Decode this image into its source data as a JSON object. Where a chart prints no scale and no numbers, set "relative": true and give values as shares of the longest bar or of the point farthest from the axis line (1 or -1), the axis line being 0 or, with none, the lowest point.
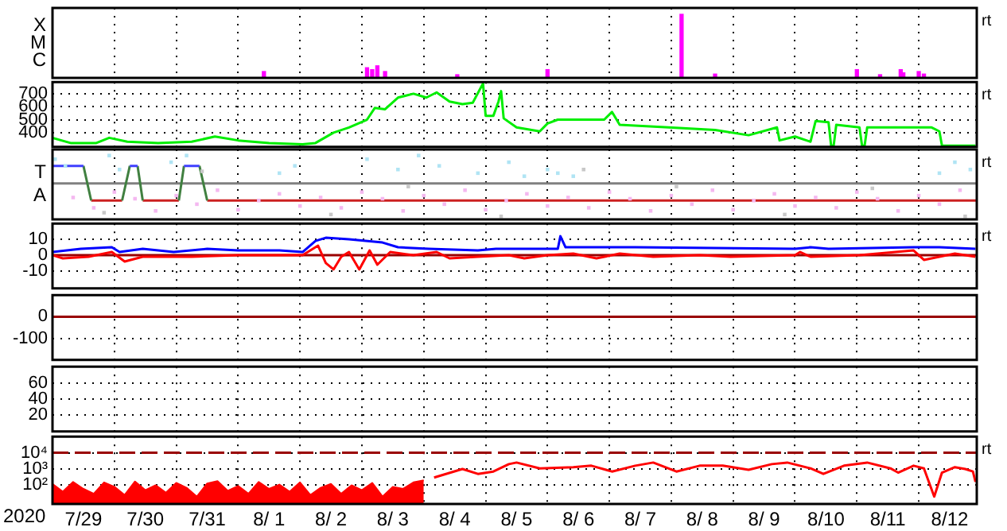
{
  "chart_data": [
    {
      "type": "bar",
      "relative": true,
      "grid": "x",
      "tick_labels": false,
      "title": "rt",
      "annotations": [
        "X",
        "M",
        "C"
      ],
      "xlim": [
        "2020-07-29",
        "2020-08-12T22:30"
      ],
      "xticks": [
        {
          "value": "2020-07-30",
          "label": null
        },
        {
          "value": "2020-07-31",
          "label": null
        },
        {
          "value": "2020-08-01",
          "label": null
        },
        {
          "value": "2020-08-02",
          "label": null
        },
        {
          "value": "2020-08-03",
          "label": null
        },
        {
          "value": "2020-08-04",
          "label": null
        },
        {
          "value": "2020-08-05",
          "label": null
        },
        {
          "value": "2020-08-06",
          "label": null
        },
        {
          "value": "2020-08-07",
          "label": null
        },
        {
          "value": "2020-08-08",
          "label": null
        },
        {
          "value": "2020-08-09",
          "label": null
        },
        {
          "value": "2020-08-10",
          "label": null
        },
        {
          "value": "2020-08-11",
          "label": null
        },
        {
          "value": "2020-08-12",
          "label": null
        }
      ],
      "series": [
        {
          "color": "#ff00ff",
          "x": [
            "2020-08-01T10:00",
            "2020-08-03T02:00",
            "2020-08-03T04:00",
            "2020-08-03T06:00",
            "2020-08-03T09:00",
            "2020-08-04T13:00",
            "2020-08-06T00:00",
            "2020-08-08T04:00",
            "2020-08-08T17:00",
            "2020-08-11T00:00",
            "2020-08-11T09:00",
            "2020-08-11T17:00",
            "2020-08-11T18:00",
            "2020-08-12T00:00",
            "2020-08-12T02:00"
          ],
          "values": [
            0.1,
            0.16,
            0.13,
            0.19,
            0.1,
            0.05,
            0.13,
            1,
            0.06,
            0.13,
            0.05,
            0.13,
            0.08,
            0.1,
            0.06
          ]
        }
      ]
    },
    {
      "type": "line",
      "grid": true,
      "tick_labels": "y",
      "title": "rt",
      "xlim": [
        "2020-07-29",
        "2020-08-12T22:30"
      ],
      "xticks": [
        {
          "value": "2020-07-30",
          "label": null
        },
        {
          "value": "2020-07-31",
          "label": null
        },
        {
          "value": "2020-08-01",
          "label": null
        },
        {
          "value": "2020-08-02",
          "label": null
        },
        {
          "value": "2020-08-03",
          "label": null
        },
        {
          "value": "2020-08-04",
          "label": null
        },
        {
          "value": "2020-08-05",
          "label": null
        },
        {
          "value": "2020-08-06",
          "label": null
        },
        {
          "value": "2020-08-07",
          "label": null
        },
        {
          "value": "2020-08-08",
          "label": null
        },
        {
          "value": "2020-08-09",
          "label": null
        },
        {
          "value": "2020-08-10",
          "label": null
        },
        {
          "value": "2020-08-11",
          "label": null
        },
        {
          "value": "2020-08-12",
          "label": null
        }
      ],
      "ylim": [
        290,
        790
      ],
      "yticks": [
        400,
        500,
        600,
        700
      ],
      "series": [
        {
          "color": "#00ee00",
          "x": [
            "2020-07-29T00:00",
            "2020-07-29T07:00",
            "2020-07-29T17:00",
            "2020-07-29T22:00",
            "2020-07-30T05:00",
            "2020-07-30T17:00",
            "2020-07-31T06:00",
            "2020-07-31T15:00",
            "2020-08-01T00:00",
            "2020-08-01T12:00",
            "2020-08-02T01:00",
            "2020-08-02T06:00",
            "2020-08-02T13:00",
            "2020-08-02T19:00",
            "2020-08-03T02:00",
            "2020-08-03T05:00",
            "2020-08-03T09:00",
            "2020-08-03T14:00",
            "2020-08-03T20:00",
            "2020-08-04T01:00",
            "2020-08-04T05:00",
            "2020-08-04T10:00",
            "2020-08-04T15:00",
            "2020-08-04T19:00",
            "2020-08-04T23:00",
            "2020-08-05T00:00",
            "2020-08-05T03:00",
            "2020-08-05T05:00",
            "2020-08-05T06:00",
            "2020-08-05T07:00",
            "2020-08-05T12:00",
            "2020-08-05T21:00",
            "2020-08-06T00:00",
            "2020-08-06T04:00",
            "2020-08-06T22:00",
            "2020-08-07T01:00",
            "2020-08-07T04:00",
            "2020-08-07T23:00",
            "2020-08-08T17:00",
            "2020-08-09T06:00",
            "2020-08-09T17:00",
            "2020-08-09T18:00",
            "2020-08-10T00:00",
            "2020-08-10T06:00",
            "2020-08-10T08:00",
            "2020-08-10T13:00",
            "2020-08-10T14:00",
            "2020-08-10T15:00",
            "2020-08-10T16:00",
            "2020-08-11T01:00",
            "2020-08-11T02:00",
            "2020-08-11T03:00",
            "2020-08-11T04:00",
            "2020-08-12T05:00",
            "2020-08-12T08:00",
            "2020-08-12T09:00",
            "2020-08-12T22:00"
          ],
          "values": [
            360,
            320,
            320,
            360,
            330,
            320,
            330,
            370,
            340,
            320,
            310,
            320,
            400,
            440,
            500,
            590,
            580,
            670,
            700,
            670,
            710,
            640,
            620,
            630,
            780,
            530,
            530,
            640,
            720,
            510,
            440,
            410,
            470,
            500,
            500,
            560,
            460,
            440,
            420,
            380,
            440,
            340,
            370,
            330,
            490,
            480,
            300,
            300,
            460,
            440,
            300,
            300,
            440,
            440,
            410,
            300,
            300
          ]
        }
      ]
    },
    {
      "type": "line",
      "relative": true,
      "grid": "x",
      "tick_labels": false,
      "title": "rt",
      "annotations": [
        "T",
        "A"
      ],
      "xlim": [
        "2020-07-29",
        "2020-08-12T22:30"
      ],
      "xticks": [
        {
          "value": "2020-07-30",
          "label": null
        },
        {
          "value": "2020-07-31",
          "label": null
        },
        {
          "value": "2020-08-01",
          "label": null
        },
        {
          "value": "2020-08-02",
          "label": null
        },
        {
          "value": "2020-08-03",
          "label": null
        },
        {
          "value": "2020-08-04",
          "label": null
        },
        {
          "value": "2020-08-05",
          "label": null
        },
        {
          "value": "2020-08-06",
          "label": null
        },
        {
          "value": "2020-08-07",
          "label": null
        },
        {
          "value": "2020-08-08",
          "label": null
        },
        {
          "value": "2020-08-09",
          "label": null
        },
        {
          "value": "2020-08-10",
          "label": null
        },
        {
          "value": "2020-08-11",
          "label": null
        },
        {
          "value": "2020-08-12",
          "label": null
        }
      ],
      "ref_lines": [
        {
          "axis": "y",
          "value": 0.54,
          "color": "#808080"
        }
      ],
      "series": [
        {
          "type": "scatter",
          "marker": "square",
          "color": "#f4b8f0",
          "x": [
            "2020-07-29T08:00",
            "2020-07-29T16:00",
            "2020-07-30T00:00",
            "2020-07-30T08:00",
            "2020-07-30T16:00",
            "2020-07-31T00:00",
            "2020-07-31T08:00",
            "2020-07-31T16:00",
            "2020-08-01T00:00",
            "2020-08-01T08:00",
            "2020-08-01T16:00",
            "2020-08-02T00:00",
            "2020-08-02T08:00",
            "2020-08-02T16:00",
            "2020-08-03T00:00",
            "2020-08-03T08:00",
            "2020-08-03T16:00",
            "2020-08-04T00:00",
            "2020-08-04T08:00",
            "2020-08-04T16:00",
            "2020-08-05T00:00",
            "2020-08-05T08:00",
            "2020-08-05T16:00",
            "2020-08-06T00:00",
            "2020-08-06T08:00",
            "2020-08-06T16:00",
            "2020-08-07T00:00",
            "2020-08-07T08:00",
            "2020-08-07T16:00",
            "2020-08-08T00:00",
            "2020-08-08T08:00",
            "2020-08-08T16:00",
            "2020-08-09T00:00",
            "2020-08-09T08:00",
            "2020-08-09T16:00",
            "2020-08-10T00:00",
            "2020-08-10T08:00",
            "2020-08-10T16:00",
            "2020-08-11T00:00",
            "2020-08-11T08:00",
            "2020-08-11T16:00",
            "2020-08-12T00:00",
            "2020-08-12T08:00",
            "2020-08-12T16:00"
          ],
          "values": [
            0.31,
            0.14,
            0.4,
            0.29,
            0.09,
            0.34,
            0.2,
            0.43,
            0.11,
            0.26,
            0.37,
            0.17,
            0.31,
            0.14,
            0.4,
            0.29,
            0.09,
            0.34,
            0.2,
            0.43,
            0.11,
            0.26,
            0.37,
            0.17,
            0.31,
            0.14,
            0.4,
            0.29,
            0.09,
            0.34,
            0.2,
            0.43,
            0.11,
            0.26,
            0.37,
            0.17,
            0.31,
            0.14,
            0.4,
            0.29,
            0.09,
            0.34,
            0.2,
            0.43
          ]
        },
        {
          "type": "scatter",
          "marker": "square",
          "color": "#b0e4f4",
          "x": [
            "2020-07-29T01:00",
            "2020-07-29T05:00",
            "2020-07-29T22:00",
            "2020-07-30T02:00",
            "2020-07-30T22:00",
            "2020-07-31T04:00",
            "2020-08-01T16:00",
            "2020-08-01T22:00",
            "2020-08-03T02:00",
            "2020-08-03T14:00",
            "2020-08-03T22:00",
            "2020-08-04T06:00",
            "2020-08-04T21:00",
            "2020-08-05T09:00",
            "2020-08-05T15:00",
            "2020-08-06T00:00",
            "2020-08-06T04:00",
            "2020-08-06T10:00",
            "2020-08-12T08:00",
            "2020-08-12T14:00",
            "2020-08-12T20:00"
          ],
          "values": [
            0.94,
            0.83,
            1,
            0.77,
            0.89,
            1,
            0.71,
            0.83,
            0.94,
            0.77,
            1,
            0.83,
            0.71,
            0.89,
            0.66,
            0.77,
            0.71,
            0.66,
            0.71,
            0.89,
            0.77
          ]
        },
        {
          "type": "scatter",
          "marker": "square",
          "color": "#c8c8c8",
          "x": [
            "2020-07-29T20:00",
            "2020-07-31T10:00",
            "2020-08-02T12:00",
            "2020-08-03T18:00",
            "2020-08-05T06:00",
            "2020-08-06T14:00",
            "2020-08-08T02:00",
            "2020-08-09T20:00",
            "2020-08-11T06:00",
            "2020-08-12T18:00"
          ],
          "values": [
            0.06,
            0.74,
            0.03,
            0.49,
            0,
            0.77,
            0.49,
            0.03,
            0.46,
            0
          ]
        },
        {
          "color": "#4040ff",
          "x": [
            "2020-07-29T00:00",
            "2020-07-29T12:00",
            "2020-07-29T17:00",
            "2020-07-30T06:00",
            "2020-07-30T09:00",
            "2020-07-30T17:00",
            "2020-07-31T03:00",
            "2020-07-31T09:00"
          ],
          "values": [
            0.83,
            0.83,
            null,
            0.83,
            0.83,
            null,
            0.83,
            0.83
          ]
        },
        {
          "color": "#408040",
          "x": [
            "2020-07-29T12:00",
            "2020-07-29T15:00",
            "2020-07-29T20:00",
            "2020-07-30T03:00",
            "2020-07-30T06:00",
            "2020-07-30T07:00",
            "2020-07-30T09:00",
            "2020-07-30T11:00",
            "2020-07-30T17:00",
            "2020-07-31T01:00",
            "2020-07-31T03:00",
            "2020-07-31T06:00",
            "2020-07-31T09:00",
            "2020-07-31T12:00"
          ],
          "values": [
            0.83,
            0.26,
            null,
            0.26,
            0.83,
            null,
            0.83,
            0.26,
            null,
            0.26,
            0.83,
            null,
            0.83,
            0.26
          ]
        },
        {
          "color": "#cc2020",
          "x": [
            "2020-07-29T15:00",
            "2020-07-30T03:00",
            "2020-07-30T04:00",
            "2020-07-30T11:00",
            "2020-07-31T01:00",
            "2020-07-31T02:00",
            "2020-07-31T12:00",
            "2020-08-12T22:30"
          ],
          "values": [
            0.26,
            0.26,
            null,
            0.26,
            0.26,
            null,
            0.26,
            0.26
          ]
        }
      ]
    },
    {
      "type": "line",
      "grid": true,
      "tick_labels": "y",
      "title": "rt",
      "xlim": [
        "2020-07-29",
        "2020-08-12T22:30"
      ],
      "xticks": [
        {
          "value": "2020-07-30",
          "label": null
        },
        {
          "value": "2020-07-31",
          "label": null
        },
        {
          "value": "2020-08-01",
          "label": null
        },
        {
          "value": "2020-08-02",
          "label": null
        },
        {
          "value": "2020-08-03",
          "label": null
        },
        {
          "value": "2020-08-04",
          "label": null
        },
        {
          "value": "2020-08-05",
          "label": null
        },
        {
          "value": "2020-08-06",
          "label": null
        },
        {
          "value": "2020-08-07",
          "label": null
        },
        {
          "value": "2020-08-08",
          "label": null
        },
        {
          "value": "2020-08-09",
          "label": null
        },
        {
          "value": "2020-08-10",
          "label": null
        },
        {
          "value": "2020-08-11",
          "label": null
        },
        {
          "value": "2020-08-12",
          "label": null
        }
      ],
      "ylim": [
        -21,
        20
      ],
      "yticks": [
        -10,
        0,
        10
      ],
      "ref_lines": [
        {
          "axis": "y",
          "value": 0,
          "color": "#990000"
        }
      ],
      "series": [
        {
          "color": "#0000ff",
          "x": [
            "2020-07-29T00:00",
            "2020-07-29T11:00",
            "2020-07-29T23:00",
            "2020-07-30T02:00",
            "2020-07-30T11:00",
            "2020-07-30T23:00",
            "2020-07-31T12:00",
            "2020-08-01T00:00",
            "2020-08-01T16:00",
            "2020-08-02T01:00",
            "2020-08-02T06:00",
            "2020-08-02T10:00",
            "2020-08-02T19:00",
            "2020-08-03T08:00",
            "2020-08-03T14:00",
            "2020-08-04T02:00",
            "2020-08-04T21:00",
            "2020-08-05T04:00",
            "2020-08-06T04:00",
            "2020-08-06T05:00",
            "2020-08-06T07:00",
            "2020-08-07T10:00",
            "2020-08-10T00:00",
            "2020-08-10T06:00",
            "2020-08-10T13:00",
            "2020-08-11T22:00",
            "2020-08-12T08:00",
            "2020-08-12T22:00"
          ],
          "values": [
            2,
            4,
            5,
            2,
            4,
            2,
            4,
            3,
            3,
            2,
            9,
            11,
            10,
            8,
            5,
            4,
            3,
            4,
            4,
            12,
            5,
            5,
            4,
            5,
            4,
            5,
            5,
            4
          ]
        },
        {
          "color": "#ff0000",
          "x": [
            "2020-07-29T00:00",
            "2020-07-29T04:00",
            "2020-07-29T14:00",
            "2020-07-29T23:00",
            "2020-07-30T04:00",
            "2020-07-30T11:00",
            "2020-07-31T06:00",
            "2020-08-01T00:00",
            "2020-08-02T01:00",
            "2020-08-02T07:00",
            "2020-08-02T10:00",
            "2020-08-02T13:00",
            "2020-08-02T16:00",
            "2020-08-02T19:00",
            "2020-08-02T23:00",
            "2020-08-03T03:00",
            "2020-08-03T06:00",
            "2020-08-03T11:00",
            "2020-08-03T20:00",
            "2020-08-04T05:00",
            "2020-08-04T10:00",
            "2020-08-04T21:00",
            "2020-08-05T09:00",
            "2020-08-05T15:00",
            "2020-08-06T00:00",
            "2020-08-06T10:00",
            "2020-08-06T19:00",
            "2020-08-07T04:00",
            "2020-08-07T17:00",
            "2020-08-08T11:00",
            "2020-08-08T23:00",
            "2020-08-10T00:00",
            "2020-08-10T02:00",
            "2020-08-10T06:00",
            "2020-08-11T01:00",
            "2020-08-11T22:00",
            "2020-08-12T02:00",
            "2020-08-12T08:00",
            "2020-08-12T14:00",
            "2020-08-12T22:00"
          ],
          "values": [
            0,
            -2,
            -1,
            2,
            -4,
            -1,
            -1,
            0,
            0,
            6,
            -5,
            -9,
            -1,
            2,
            -9,
            3,
            -6,
            2,
            0,
            2,
            -2,
            -1,
            0,
            -2,
            0,
            1,
            -2,
            1,
            -1,
            0,
            -1,
            0,
            2,
            -1,
            0,
            3,
            -3,
            -1,
            1,
            -1
          ]
        }
      ]
    },
    {
      "type": "line",
      "grid": true,
      "tick_labels": "y",
      "xlim": [
        "2020-07-29",
        "2020-08-12T22:30"
      ],
      "xticks": [
        {
          "value": "2020-07-30",
          "label": null
        },
        {
          "value": "2020-07-31",
          "label": null
        },
        {
          "value": "2020-08-01",
          "label": null
        },
        {
          "value": "2020-08-02",
          "label": null
        },
        {
          "value": "2020-08-03",
          "label": null
        },
        {
          "value": "2020-08-04",
          "label": null
        },
        {
          "value": "2020-08-05",
          "label": null
        },
        {
          "value": "2020-08-06",
          "label": null
        },
        {
          "value": "2020-08-07",
          "label": null
        },
        {
          "value": "2020-08-08",
          "label": null
        },
        {
          "value": "2020-08-09",
          "label": null
        },
        {
          "value": "2020-08-10",
          "label": null
        },
        {
          "value": "2020-08-11",
          "label": null
        },
        {
          "value": "2020-08-12",
          "label": null
        }
      ],
      "ylim": [
        -200,
        100
      ],
      "yticks": [
        -100,
        0
      ],
      "ref_lines": [
        {
          "axis": "y",
          "value": 0,
          "color": "#990000"
        }
      ]
    },
    {
      "type": "line",
      "grid": true,
      "tick_labels": "y",
      "xlim": [
        "2020-07-29",
        "2020-08-12T22:30"
      ],
      "xticks": [
        {
          "value": "2020-07-30",
          "label": null
        },
        {
          "value": "2020-07-31",
          "label": null
        },
        {
          "value": "2020-08-01",
          "label": null
        },
        {
          "value": "2020-08-02",
          "label": null
        },
        {
          "value": "2020-08-03",
          "label": null
        },
        {
          "value": "2020-08-04",
          "label": null
        },
        {
          "value": "2020-08-05",
          "label": null
        },
        {
          "value": "2020-08-06",
          "label": null
        },
        {
          "value": "2020-08-07",
          "label": null
        },
        {
          "value": "2020-08-08",
          "label": null
        },
        {
          "value": "2020-08-09",
          "label": null
        },
        {
          "value": "2020-08-10",
          "label": null
        },
        {
          "value": "2020-08-11",
          "label": null
        },
        {
          "value": "2020-08-12",
          "label": null
        }
      ],
      "ylim": [
        0,
        80
      ],
      "yticks": [
        20,
        40,
        60
      ]
    },
    {
      "type": "line",
      "log": "y",
      "grid": true,
      "xlabel": "2020",
      "title": "rt",
      "xlim": [
        "2020-07-29",
        "2020-08-12T22:30"
      ],
      "xticks": [
        {
          "value": "2020-07-29T12:00",
          "label": "7/29"
        },
        {
          "value": "2020-07-30",
          "label": null
        },
        {
          "value": "2020-07-30T12:00",
          "label": "7/30"
        },
        {
          "value": "2020-07-31",
          "label": null
        },
        {
          "value": "2020-07-31T12:00",
          "label": "7/31"
        },
        {
          "value": "2020-08-01",
          "label": null
        },
        {
          "value": "2020-08-01T12:00",
          "label": "8/ 1"
        },
        {
          "value": "2020-08-02",
          "label": null
        },
        {
          "value": "2020-08-02T12:00",
          "label": "8/ 2"
        },
        {
          "value": "2020-08-03",
          "label": null
        },
        {
          "value": "2020-08-03T12:00",
          "label": "8/ 3"
        },
        {
          "value": "2020-08-04",
          "label": null
        },
        {
          "value": "2020-08-04T12:00",
          "label": "8/ 4"
        },
        {
          "value": "2020-08-05",
          "label": null
        },
        {
          "value": "2020-08-05T12:00",
          "label": "8/ 5"
        },
        {
          "value": "2020-08-06",
          "label": null
        },
        {
          "value": "2020-08-06T12:00",
          "label": "8/ 6"
        },
        {
          "value": "2020-08-07",
          "label": null
        },
        {
          "value": "2020-08-07T12:00",
          "label": "8/ 7"
        },
        {
          "value": "2020-08-08",
          "label": null
        },
        {
          "value": "2020-08-08T12:00",
          "label": "8/ 8"
        },
        {
          "value": "2020-08-09",
          "label": null
        },
        {
          "value": "2020-08-09T12:00",
          "label": "8/ 9"
        },
        {
          "value": "2020-08-10",
          "label": null
        },
        {
          "value": "2020-08-10T12:00",
          "label": "8/10"
        },
        {
          "value": "2020-08-11",
          "label": null
        },
        {
          "value": "2020-08-11T12:00",
          "label": "8/11"
        },
        {
          "value": "2020-08-12",
          "label": null
        },
        {
          "value": "2020-08-12T12:00",
          "label": "8/12"
        }
      ],
      "ylim": [
        7,
        100000
      ],
      "yticks": [
        {
          "value": 100,
          "label": "10²"
        },
        {
          "value": 1000,
          "label": "10³"
        },
        {
          "value": 10000,
          "label": "10⁴"
        }
      ],
      "ref_lines": [
        {
          "axis": "y",
          "value": 10000,
          "color": "#990000",
          "line_style": "dashed"
        }
      ],
      "series": [
        {
          "type": "area",
          "color": "#ff0000",
          "x": [
            "2020-07-29T00:00",
            "2020-07-29T04:00",
            "2020-07-29T08:00",
            "2020-07-29T12:00",
            "2020-07-29T16:00",
            "2020-07-29T20:00",
            "2020-07-30T00:00",
            "2020-07-30T04:00",
            "2020-07-30T08:00",
            "2020-07-30T12:00",
            "2020-07-30T16:00",
            "2020-07-30T20:00",
            "2020-07-31T00:00",
            "2020-07-31T04:00",
            "2020-07-31T08:00",
            "2020-07-31T12:00",
            "2020-07-31T16:00",
            "2020-07-31T20:00",
            "2020-08-01T00:00",
            "2020-08-01T04:00",
            "2020-08-01T08:00",
            "2020-08-01T12:00",
            "2020-08-01T16:00",
            "2020-08-01T20:00",
            "2020-08-02T00:00",
            "2020-08-02T04:00",
            "2020-08-02T08:00",
            "2020-08-02T12:00",
            "2020-08-02T16:00",
            "2020-08-02T20:00",
            "2020-08-03T00:00",
            "2020-08-03T04:00",
            "2020-08-03T08:00",
            "2020-08-03T12:00",
            "2020-08-03T16:00",
            "2020-08-03T20:00",
            "2020-08-04T00:00"
          ],
          "values": [
            120,
            40,
            160,
            60,
            30,
            150,
            80,
            25,
            170,
            50,
            100,
            35,
            140,
            70,
            20,
            130,
            180,
            45,
            90,
            30,
            160,
            60,
            110,
            40,
            150,
            25,
            70,
            120,
            30,
            100,
            50,
            140,
            20,
            80,
            60,
            150,
            200
          ]
        },
        {
          "color": "#ff0000",
          "x": [
            "2020-08-04T04:00",
            "2020-08-04T15:00",
            "2020-08-04T21:00",
            "2020-08-05T03:00",
            "2020-08-05T09:00",
            "2020-08-05T12:00",
            "2020-08-05T21:00",
            "2020-08-06T10:00",
            "2020-08-06T17:00",
            "2020-08-07T01:00",
            "2020-08-07T10:00",
            "2020-08-07T17:00",
            "2020-08-08T02:00",
            "2020-08-08T11:00",
            "2020-08-08T20:00",
            "2020-08-09T06:00",
            "2020-08-09T15:00",
            "2020-08-09T21:00",
            "2020-08-10T06:00",
            "2020-08-10T11:00",
            "2020-08-10T19:00",
            "2020-08-11T04:00",
            "2020-08-11T13:00",
            "2020-08-11T16:00",
            "2020-08-11T22:00",
            "2020-08-12T02:00",
            "2020-08-12T06:00",
            "2020-08-12T09:00",
            "2020-08-12T14:00",
            "2020-08-12T18:00",
            "2020-08-12T21:00",
            "2020-08-12T22:00"
          ],
          "values": [
            300,
            1000,
            500,
            700,
            2000,
            2500,
            1100,
            1300,
            1600,
            700,
            1600,
            2500,
            700,
            1600,
            1600,
            900,
            2000,
            2500,
            1100,
            500,
            1600,
            2500,
            1100,
            600,
            1600,
            1100,
            20,
            600,
            1300,
            1000,
            700,
            160
          ]
        }
      ]
    }
  ]
}
